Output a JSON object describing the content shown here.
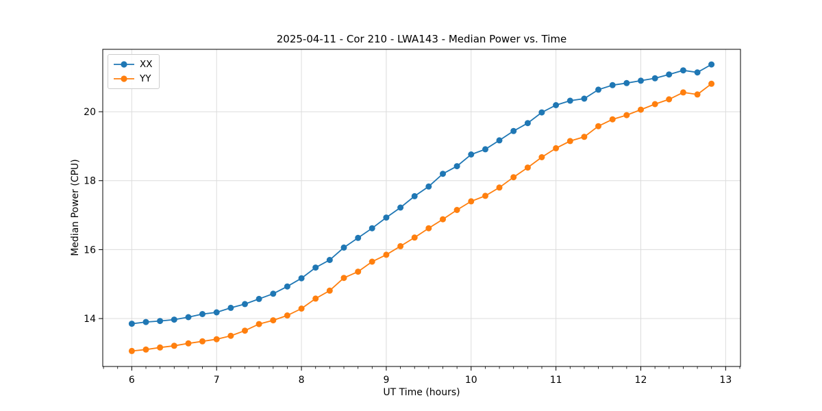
{
  "chart": {
    "title": "2025-04-11 - Cor 210 - LWA143 - Median Power vs. Time",
    "xlabel": "UT Time (hours)",
    "ylabel": "Median Power (CPU)"
  },
  "chart_data": {
    "type": "line",
    "title": "2025-04-11 - Cor 210 - LWA143 - Median Power vs. Time",
    "xlabel": "UT Time (hours)",
    "ylabel": "Median Power (CPU)",
    "x": [
      6.0,
      6.167,
      6.333,
      6.5,
      6.667,
      6.833,
      7.0,
      7.167,
      7.333,
      7.5,
      7.667,
      7.833,
      8.0,
      8.167,
      8.333,
      8.5,
      8.667,
      8.833,
      9.0,
      9.167,
      9.333,
      9.5,
      9.667,
      9.833,
      10.0,
      10.167,
      10.333,
      10.5,
      10.667,
      10.833,
      11.0,
      11.167,
      11.333,
      11.5,
      11.667,
      11.833,
      12.0,
      12.167,
      12.333,
      12.5,
      12.667,
      12.833
    ],
    "series": [
      {
        "name": "XX",
        "color": "#1f77b4",
        "values": [
          13.85,
          13.9,
          13.93,
          13.97,
          14.04,
          14.13,
          14.18,
          14.31,
          14.42,
          14.57,
          14.72,
          14.93,
          15.17,
          15.48,
          15.7,
          16.06,
          16.34,
          16.62,
          16.93,
          17.22,
          17.55,
          17.83,
          18.2,
          18.42,
          18.76,
          18.91,
          19.17,
          19.44,
          19.67,
          19.98,
          20.19,
          20.32,
          20.38,
          20.64,
          20.77,
          20.83,
          20.9,
          20.97,
          21.08,
          21.2,
          21.14,
          21.37
        ]
      },
      {
        "name": "YY",
        "color": "#ff7f0e",
        "values": [
          13.06,
          13.1,
          13.16,
          13.21,
          13.28,
          13.34,
          13.4,
          13.5,
          13.65,
          13.84,
          13.95,
          14.09,
          14.29,
          14.58,
          14.81,
          15.18,
          15.36,
          15.65,
          15.85,
          16.1,
          16.35,
          16.62,
          16.88,
          17.15,
          17.4,
          17.56,
          17.8,
          18.1,
          18.38,
          18.68,
          18.94,
          19.15,
          19.27,
          19.58,
          19.78,
          19.9,
          20.06,
          20.22,
          20.36,
          20.56,
          20.5,
          20.81
        ]
      }
    ],
    "xlim": [
      5.658,
      13.175
    ],
    "ylim": [
      12.61,
      21.81
    ],
    "xticks": [
      6,
      7,
      8,
      9,
      10,
      11,
      12,
      13
    ],
    "yticks": [
      14,
      16,
      18,
      20
    ],
    "x_minor_step": 0.16667,
    "grid": true,
    "grid_color": "#dcdcdc",
    "legend_position": "upper left",
    "marker": "o"
  }
}
